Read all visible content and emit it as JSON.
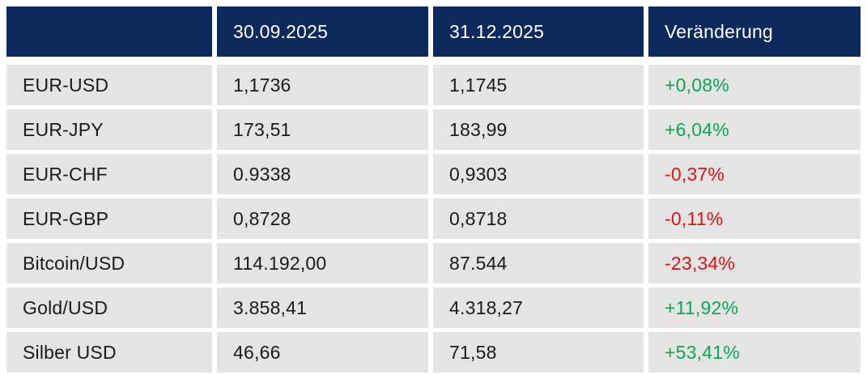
{
  "colors": {
    "header_bg": "#0d2a5c",
    "row_bg": "#e4e4e4",
    "positive": "#0ca750",
    "negative": "#e01212"
  },
  "table": {
    "columns": [
      "",
      "30.09.2025",
      "31.12.2025",
      "Veränderung"
    ],
    "rows": [
      {
        "label": "EUR-USD",
        "v1": "1,1736",
        "v2": "1,1745",
        "change": "+0,08%",
        "direction": "pos"
      },
      {
        "label": "EUR-JPY",
        "v1": "173,51",
        "v2": "183,99",
        "change": "+6,04%",
        "direction": "pos"
      },
      {
        "label": "EUR-CHF",
        "v1": "0.9338",
        "v2": "0,9303",
        "change": "-0,37%",
        "direction": "neg"
      },
      {
        "label": "EUR-GBP",
        "v1": "0,8728",
        "v2": "0,8718",
        "change": "-0,11%",
        "direction": "neg"
      },
      {
        "label": "Bitcoin/USD",
        "v1": "114.192,00",
        "v2": "87.544",
        "change": "-23,34%",
        "direction": "neg"
      },
      {
        "label": "Gold/USD",
        "v1": "3.858,41",
        "v2": "4.318,27",
        "change": "+11,92%",
        "direction": "pos"
      },
      {
        "label": "Silber USD",
        "v1": "46,66",
        "v2": "71,58",
        "change": "+53,41%",
        "direction": "pos"
      }
    ]
  },
  "chart_data": {
    "type": "table",
    "title": "",
    "columns": [
      "",
      "30.09.2025",
      "31.12.2025",
      "Veränderung"
    ],
    "rows": [
      [
        "EUR-USD",
        "1,1736",
        "1,1745",
        "+0,08%"
      ],
      [
        "EUR-JPY",
        "173,51",
        "183,99",
        "+6,04%"
      ],
      [
        "EUR-CHF",
        "0.9338",
        "0,9303",
        "-0,37%"
      ],
      [
        "EUR-GBP",
        "0,8728",
        "0,8718",
        "-0,11%"
      ],
      [
        "Bitcoin/USD",
        "114.192,00",
        "87.544",
        "-23,34%"
      ],
      [
        "Gold/USD",
        "3.858,41",
        "4.318,27",
        "+11,92%"
      ],
      [
        "Silber USD",
        "46,66",
        "71,58",
        "+53,41%"
      ]
    ],
    "notes": "Change column colored green for positive, red for negative"
  }
}
